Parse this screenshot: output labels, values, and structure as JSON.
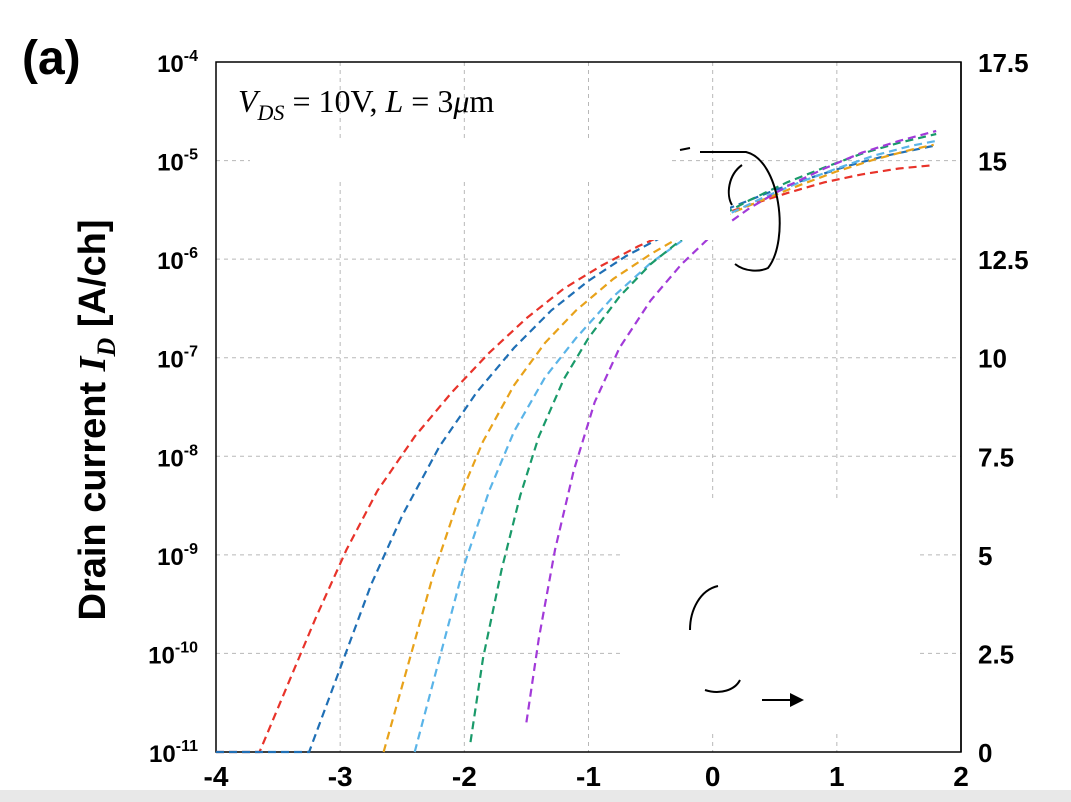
{
  "chart_data": {
    "type": "line",
    "panel_label": "(a)",
    "ylabel": "Drain current I_D [A/ch]",
    "ylabel_parts": {
      "prefix": "Drain current ",
      "symbol": "I",
      "subscript": "D",
      "suffix": " [A/ch]"
    },
    "annotation": "V_DS = 10V, L = 3μm",
    "annotation_parts": {
      "v": "V",
      "v_sub": "DS",
      "eq1": " = 10V, ",
      "l": "L",
      "eq2": " = 3",
      "mu": "μ",
      "unit": "m"
    },
    "xlim": [
      -4,
      2
    ],
    "x_ticks": [
      "-4",
      "-3",
      "-2",
      "-1",
      "0",
      "1",
      "2"
    ],
    "y_scale": "log",
    "ylim_exp": [
      -11,
      -4
    ],
    "y_ticks_left": [
      {
        "base": "10",
        "exp": "-4"
      },
      {
        "base": "10",
        "exp": "-5"
      },
      {
        "base": "10",
        "exp": "-6"
      },
      {
        "base": "10",
        "exp": "-7"
      },
      {
        "base": "10",
        "exp": "-8"
      },
      {
        "base": "10",
        "exp": "-9"
      },
      {
        "base": "10",
        "exp": "-10"
      },
      {
        "base": "10",
        "exp": "-11"
      }
    ],
    "y2lim": [
      0,
      17.5
    ],
    "y_ticks_right": [
      "17.5",
      "15",
      "12.5",
      "10",
      "7.5",
      "5",
      "2.5",
      "0"
    ],
    "grid": true,
    "line_style": "dashed",
    "series": [
      {
        "color": "#e8332a",
        "x": [
          -4.0,
          -3.65,
          -3.45,
          -3.2,
          -2.95,
          -2.7,
          -2.4,
          -2.1,
          -1.8,
          -1.5,
          -1.2,
          -0.9,
          -0.6,
          -0.3,
          0.0,
          0.3,
          0.6,
          0.9,
          1.2,
          1.5,
          1.75
        ],
        "y_exp": [
          -11.0,
          -11.0,
          -10.4,
          -9.65,
          -8.95,
          -8.35,
          -7.8,
          -7.35,
          -6.95,
          -6.6,
          -6.3,
          -6.07,
          -5.87,
          -5.7,
          -5.58,
          -5.45,
          -5.33,
          -5.22,
          -5.14,
          -5.08,
          -5.05
        ]
      },
      {
        "color": "#1f6fb5",
        "x": [
          -4.0,
          -3.25,
          -3.0,
          -2.75,
          -2.5,
          -2.2,
          -1.9,
          -1.6,
          -1.3,
          -1.0,
          -0.7,
          -0.4,
          -0.1,
          0.2,
          0.5,
          0.8,
          1.1,
          1.4,
          1.78
        ],
        "y_exp": [
          -11.0,
          -11.0,
          -10.15,
          -9.3,
          -8.6,
          -7.9,
          -7.35,
          -6.9,
          -6.52,
          -6.22,
          -5.97,
          -5.77,
          -5.6,
          -5.45,
          -5.3,
          -5.17,
          -5.05,
          -4.95,
          -4.85
        ]
      },
      {
        "color": "#e8a21a",
        "x": [
          -2.65,
          -2.45,
          -2.25,
          -2.05,
          -1.85,
          -1.6,
          -1.35,
          -1.1,
          -0.8,
          -0.5,
          -0.2,
          0.1,
          0.4,
          0.7,
          1.0,
          1.3,
          1.6,
          1.78
        ],
        "y_exp": [
          -11.0,
          -10.1,
          -9.2,
          -8.45,
          -7.85,
          -7.28,
          -6.85,
          -6.52,
          -6.2,
          -5.95,
          -5.73,
          -5.56,
          -5.4,
          -5.25,
          -5.11,
          -4.99,
          -4.89,
          -4.84
        ]
      },
      {
        "color": "#5ab4e8",
        "x": [
          -2.4,
          -2.2,
          -2.0,
          -1.8,
          -1.6,
          -1.35,
          -1.1,
          -0.8,
          -0.5,
          -0.2,
          0.1,
          0.4,
          0.7,
          1.0,
          1.3,
          1.6,
          1.8
        ],
        "y_exp": [
          -11.0,
          -10.05,
          -9.1,
          -8.35,
          -7.75,
          -7.2,
          -6.8,
          -6.38,
          -6.04,
          -5.77,
          -5.56,
          -5.38,
          -5.22,
          -5.08,
          -4.95,
          -4.85,
          -4.8
        ]
      },
      {
        "color": "#1a9a6a",
        "x": [
          -1.95,
          -1.85,
          -1.7,
          -1.55,
          -1.4,
          -1.2,
          -1.0,
          -0.75,
          -0.5,
          -0.25,
          0.0,
          0.3,
          0.6,
          0.9,
          1.2,
          1.5,
          1.8
        ],
        "y_exp": [
          -10.9,
          -10.05,
          -9.15,
          -8.4,
          -7.8,
          -7.22,
          -6.8,
          -6.38,
          -6.05,
          -5.8,
          -5.6,
          -5.4,
          -5.22,
          -5.07,
          -4.93,
          -4.82,
          -4.73
        ]
      },
      {
        "color": "#a23ad9",
        "x": [
          -1.5,
          -1.4,
          -1.27,
          -1.12,
          -0.95,
          -0.75,
          -0.5,
          -0.25,
          0.0,
          0.3,
          0.6,
          0.9,
          1.2,
          1.5,
          1.8
        ],
        "y_exp": [
          -10.7,
          -9.85,
          -8.95,
          -8.15,
          -7.45,
          -6.9,
          -6.42,
          -6.05,
          -5.75,
          -5.48,
          -5.26,
          -5.08,
          -4.92,
          -4.8,
          -4.7
        ]
      }
    ]
  }
}
